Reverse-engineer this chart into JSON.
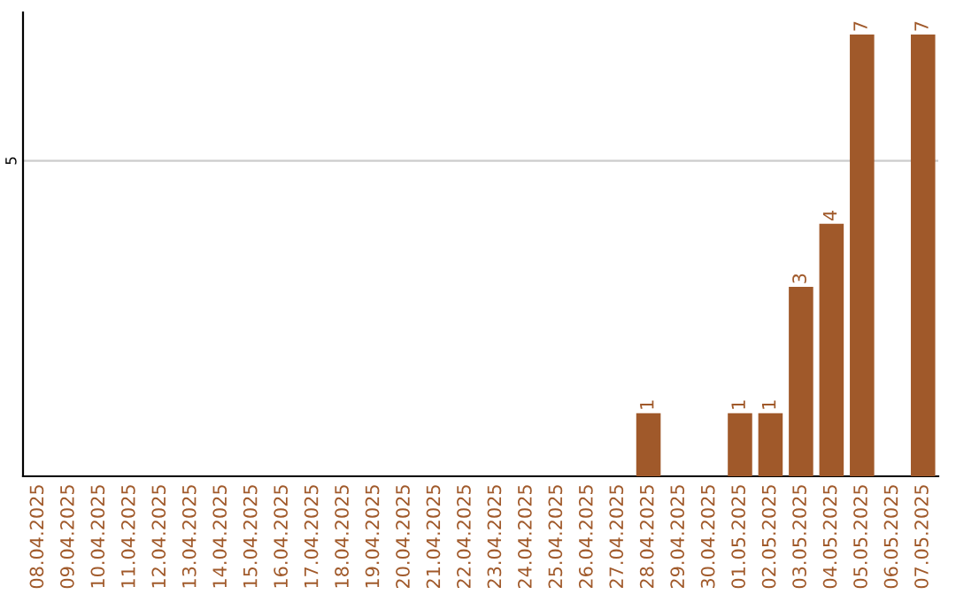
{
  "chart_data": {
    "type": "bar",
    "categories": [
      "08.04.2025",
      "09.04.2025",
      "10.04.2025",
      "11.04.2025",
      "12.04.2025",
      "13.04.2025",
      "14.04.2025",
      "15.04.2025",
      "16.04.2025",
      "17.04.2025",
      "18.04.2025",
      "19.04.2025",
      "20.04.2025",
      "21.04.2025",
      "22.04.2025",
      "23.04.2025",
      "24.04.2025",
      "25.04.2025",
      "26.04.2025",
      "27.04.2025",
      "28.04.2025",
      "29.04.2025",
      "30.04.2025",
      "01.05.2025",
      "02.05.2025",
      "03.05.2025",
      "04.05.2025",
      "05.05.2025",
      "06.05.2025",
      "07.05.2025"
    ],
    "values": [
      null,
      null,
      null,
      null,
      null,
      null,
      null,
      null,
      null,
      null,
      null,
      null,
      null,
      null,
      null,
      null,
      null,
      null,
      null,
      null,
      1,
      null,
      null,
      1,
      1,
      3,
      4,
      7,
      null,
      7
    ],
    "value_labels": [
      null,
      null,
      null,
      null,
      null,
      null,
      null,
      null,
      null,
      null,
      null,
      null,
      null,
      null,
      null,
      null,
      null,
      null,
      null,
      null,
      "1",
      null,
      null,
      "1",
      "1",
      "3",
      "4",
      "7",
      null,
      "7"
    ],
    "color": "#a0592a",
    "ref_lines": [
      {
        "axis": "y",
        "value": 5,
        "label": "5",
        "color": "#cccccc"
      }
    ]
  }
}
